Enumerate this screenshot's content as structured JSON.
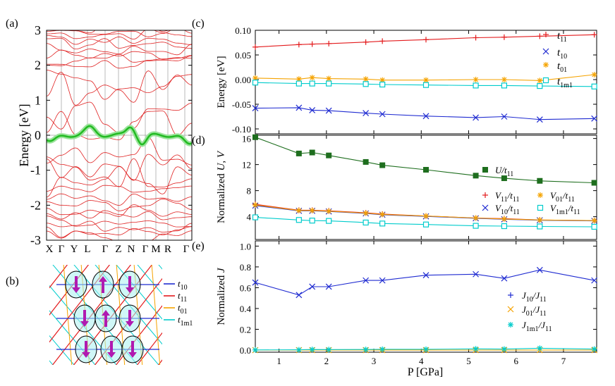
{
  "panel_labels": {
    "a": "(a)",
    "b": "(b)",
    "c": "(c)",
    "d": "(d)",
    "e": "(e)"
  },
  "colors": {
    "t11": "#e31a1c",
    "t10": "#1f2bd1",
    "t01": "#f5a300",
    "t1m1": "#00cccc",
    "U": "#1e6e1e",
    "bands": "#e02020",
    "flat": "#22bb22",
    "spin": "#b01ab0"
  },
  "chart_data": [
    {
      "id": "a",
      "type": "line",
      "ylabel": "Energy [eV]",
      "ylim": [
        -3,
        3
      ],
      "yticks": [
        "3",
        "2",
        "1",
        "0",
        "-1",
        "-2",
        "-3"
      ],
      "kpath": [
        "X",
        "Γ",
        "Y",
        "L",
        "Γ",
        "Z",
        "N",
        "Γ",
        "M",
        "R",
        "Γ"
      ]
    },
    {
      "id": "b",
      "type": "diagram",
      "legend": [
        {
          "key": "t10",
          "label": "t",
          "sub": "10"
        },
        {
          "key": "t11",
          "label": "t",
          "sub": "11"
        },
        {
          "key": "t01",
          "label": "t",
          "sub": "01"
        },
        {
          "key": "t1m1",
          "label": "t",
          "sub": "1m1"
        }
      ],
      "spins": [
        "down",
        "up",
        "down",
        "down",
        "up",
        "down",
        "down",
        "down",
        "down"
      ]
    },
    {
      "id": "c",
      "type": "line",
      "ylabel": "Energy [eV]",
      "ylim": [
        -0.11,
        0.1
      ],
      "yticks": [
        {
          "v": 0.1,
          "t": "0.10"
        },
        {
          "v": 0.05,
          "t": "0.05"
        },
        {
          "v": 0,
          "t": "0.00"
        },
        {
          "v": -0.05,
          "t": "-0.05"
        },
        {
          "v": -0.1,
          "t": "-0.10"
        }
      ],
      "x": [
        0.5,
        1.42,
        1.7,
        2.05,
        2.83,
        3.18,
        4.1,
        5.15,
        5.75,
        6.5,
        7.65
      ],
      "series": [
        {
          "name": "t11",
          "label": "t",
          "sub": "11",
          "color": "t11",
          "marker": "plus",
          "values": [
            0.066,
            0.071,
            0.072,
            0.073,
            0.076,
            0.078,
            0.081,
            0.085,
            0.086,
            0.088,
            0.091
          ]
        },
        {
          "name": "t10",
          "label": "t",
          "sub": "10",
          "color": "t10",
          "marker": "x",
          "values": [
            -0.058,
            -0.057,
            -0.062,
            -0.063,
            -0.068,
            -0.07,
            -0.074,
            -0.077,
            -0.075,
            -0.081,
            -0.079
          ]
        },
        {
          "name": "t01",
          "label": "t",
          "sub": "01",
          "color": "t01",
          "marker": "star",
          "values": [
            0.003,
            0.001,
            0.004,
            0.002,
            0.001,
            -0.001,
            -0.001,
            0.0,
            0.0,
            -0.002,
            0.01
          ]
        },
        {
          "name": "t1m1",
          "label": "t",
          "sub": "1m1",
          "color": "t1m1",
          "marker": "square",
          "values": [
            -0.006,
            -0.008,
            -0.008,
            -0.008,
            -0.009,
            -0.01,
            -0.011,
            -0.012,
            -0.012,
            -0.013,
            -0.014
          ]
        }
      ]
    },
    {
      "id": "d",
      "type": "line",
      "ylabel": "Normalized U, V",
      "ylim": [
        0.5,
        16.5
      ],
      "yticks": [
        {
          "v": 16,
          "t": "16"
        },
        {
          "v": 12,
          "t": "12"
        },
        {
          "v": 8,
          "t": "8"
        },
        {
          "v": 4,
          "t": "4"
        }
      ],
      "x": [
        0.5,
        1.42,
        1.7,
        2.05,
        2.83,
        3.18,
        4.1,
        5.15,
        5.75,
        6.5,
        7.65
      ],
      "series": [
        {
          "name": "U/t11",
          "label": "U/t",
          "sub": "11",
          "color": "U",
          "marker": "fsquare",
          "values": [
            16.2,
            13.7,
            13.85,
            13.4,
            12.4,
            11.9,
            11.2,
            10.3,
            9.9,
            9.5,
            9.2
          ]
        },
        {
          "name": "V11/t11",
          "label": "V",
          "sub": "11",
          "tail": "/t",
          "tailsub": "11",
          "color": "t11",
          "marker": "plus",
          "values": [
            5.9,
            5.0,
            5.0,
            4.9,
            4.6,
            4.4,
            4.1,
            3.8,
            3.7,
            3.5,
            3.4
          ]
        },
        {
          "name": "V10/t11",
          "label": "V",
          "sub": "10",
          "tail": "/t",
          "tailsub": "11",
          "color": "t10",
          "marker": "x",
          "values": [
            5.7,
            4.9,
            4.9,
            4.8,
            4.5,
            4.3,
            4.05,
            3.75,
            3.6,
            3.45,
            3.35
          ]
        },
        {
          "name": "V01/t11",
          "label": "V",
          "sub": "01",
          "tail": "/t",
          "tailsub": "11",
          "color": "t01",
          "marker": "star",
          "values": [
            5.8,
            4.95,
            4.95,
            4.85,
            4.55,
            4.35,
            4.1,
            3.8,
            3.65,
            3.5,
            3.4
          ]
        },
        {
          "name": "V1m1/t11",
          "label": "V",
          "sub": "1m1",
          "tail": "/t",
          "tailsub": "11",
          "color": "t1m1",
          "marker": "square",
          "values": [
            3.9,
            3.5,
            3.4,
            3.35,
            3.1,
            2.95,
            2.8,
            2.6,
            2.55,
            2.5,
            2.45
          ]
        }
      ]
    },
    {
      "id": "e",
      "type": "line",
      "ylabel": "Normalized J",
      "xlabel": "P [GPa]",
      "ylim": [
        -0.02,
        1.05
      ],
      "xlim": [
        0.5,
        7.7
      ],
      "xticks": [
        1,
        2,
        3,
        4,
        5,
        6,
        7
      ],
      "yticks": [
        {
          "v": 1.0,
          "t": "1.0"
        },
        {
          "v": 0.8,
          "t": "0.8"
        },
        {
          "v": 0.6,
          "t": "0.6"
        },
        {
          "v": 0.4,
          "t": "0.4"
        },
        {
          "v": 0.2,
          "t": "0.2"
        },
        {
          "v": 0.0,
          "t": "0.0"
        }
      ],
      "x": [
        0.5,
        1.42,
        1.7,
        2.05,
        2.83,
        3.18,
        4.1,
        5.15,
        5.75,
        6.5,
        7.65
      ],
      "series": [
        {
          "name": "J10/J11",
          "label": "J",
          "sub": "10",
          "tail": "/J",
          "tailsub": "11",
          "color": "t10",
          "marker": "x",
          "legmarker": "plus",
          "values": [
            0.65,
            0.53,
            0.61,
            0.61,
            0.67,
            0.67,
            0.72,
            0.73,
            0.69,
            0.77,
            0.67
          ]
        },
        {
          "name": "J01/J11",
          "label": "J",
          "sub": "01",
          "tail": "/J",
          "tailsub": "11",
          "color": "t01",
          "marker": "x",
          "values": [
            0.0,
            0.0,
            0.0,
            0.0,
            0.0,
            0.0,
            0.0,
            0.0,
            0.0,
            0.0,
            0.0
          ]
        },
        {
          "name": "J1m1/J11",
          "label": "J",
          "sub": "1m1",
          "tail": "/J",
          "tailsub": "11",
          "color": "t1m1",
          "marker": "star",
          "values": [
            0.002,
            0.003,
            0.006,
            0.005,
            0.006,
            0.008,
            0.008,
            0.012,
            0.01,
            0.018,
            0.01
          ]
        }
      ]
    }
  ]
}
